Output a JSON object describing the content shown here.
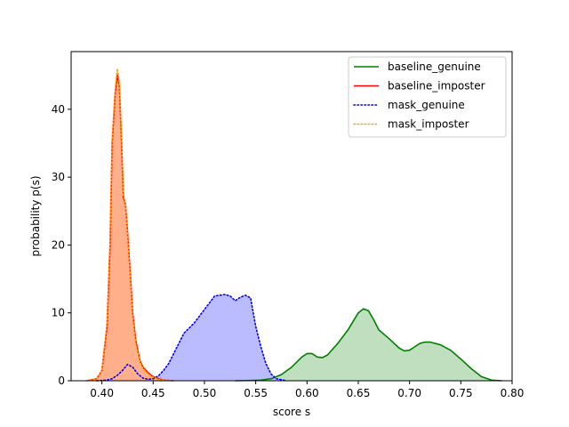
{
  "chart_data": {
    "type": "area",
    "title": "",
    "xlabel": "score s",
    "ylabel": "probability p(s)",
    "xlim": [
      0.37,
      0.8
    ],
    "ylim": [
      0,
      48.5
    ],
    "xticks": [
      0.4,
      0.45,
      0.5,
      0.55,
      0.6,
      0.65,
      0.7,
      0.75,
      0.8
    ],
    "xtick_labels": [
      "0.40",
      "0.45",
      "0.50",
      "0.55",
      "0.60",
      "0.65",
      "0.70",
      "0.75",
      "0.80"
    ],
    "yticks": [
      0,
      10,
      20,
      30,
      40
    ],
    "ytick_labels": [
      "0",
      "10",
      "20",
      "30",
      "40"
    ],
    "grid": false,
    "legend_position": "top-right",
    "series": [
      {
        "name": "baseline_genuine",
        "color": "#008000",
        "fill": "#bfdfbf",
        "linestyle": "solid",
        "points": [
          [
            0.53,
            0
          ],
          [
            0.545,
            0.05
          ],
          [
            0.555,
            0.1
          ],
          [
            0.565,
            0.3
          ],
          [
            0.575,
            0.9
          ],
          [
            0.585,
            2.0
          ],
          [
            0.595,
            3.5
          ],
          [
            0.6,
            4.0
          ],
          [
            0.605,
            4.0
          ],
          [
            0.61,
            3.5
          ],
          [
            0.615,
            3.4
          ],
          [
            0.62,
            3.8
          ],
          [
            0.63,
            5.5
          ],
          [
            0.64,
            7.5
          ],
          [
            0.65,
            10.0
          ],
          [
            0.655,
            10.6
          ],
          [
            0.66,
            10.3
          ],
          [
            0.665,
            9.0
          ],
          [
            0.67,
            7.5
          ],
          [
            0.68,
            6.2
          ],
          [
            0.69,
            4.8
          ],
          [
            0.695,
            4.4
          ],
          [
            0.7,
            4.5
          ],
          [
            0.705,
            5.0
          ],
          [
            0.71,
            5.5
          ],
          [
            0.715,
            5.7
          ],
          [
            0.72,
            5.7
          ],
          [
            0.73,
            5.3
          ],
          [
            0.74,
            4.5
          ],
          [
            0.75,
            3.2
          ],
          [
            0.76,
            1.8
          ],
          [
            0.77,
            0.6
          ],
          [
            0.78,
            0.1
          ],
          [
            0.79,
            0
          ]
        ]
      },
      {
        "name": "baseline_imposter",
        "color": "#ff0000",
        "fill": "#ffb08a",
        "linestyle": "solid",
        "points": [
          [
            0.385,
            0
          ],
          [
            0.395,
            0.3
          ],
          [
            0.4,
            1.5
          ],
          [
            0.405,
            8.0
          ],
          [
            0.408,
            20.0
          ],
          [
            0.41,
            35.0
          ],
          [
            0.413,
            42.5
          ],
          [
            0.415,
            45.0
          ],
          [
            0.417,
            43.5
          ],
          [
            0.419,
            36.0
          ],
          [
            0.421,
            27.0
          ],
          [
            0.423,
            26.0
          ],
          [
            0.425,
            22.0
          ],
          [
            0.428,
            15.0
          ],
          [
            0.43,
            10.0
          ],
          [
            0.433,
            6.0
          ],
          [
            0.437,
            3.0
          ],
          [
            0.44,
            2.0
          ],
          [
            0.445,
            1.2
          ],
          [
            0.45,
            0.6
          ],
          [
            0.455,
            0.3
          ],
          [
            0.46,
            0.1
          ],
          [
            0.47,
            0
          ]
        ]
      },
      {
        "name": "mask_genuine",
        "color": "#0000ff",
        "fill": "#bbbbff",
        "linestyle": "dotted",
        "points": [
          [
            0.395,
            0
          ],
          [
            0.405,
            0.1
          ],
          [
            0.41,
            0.3
          ],
          [
            0.415,
            0.8
          ],
          [
            0.42,
            1.5
          ],
          [
            0.425,
            2.4
          ],
          [
            0.43,
            2.0
          ],
          [
            0.435,
            1.0
          ],
          [
            0.44,
            0.4
          ],
          [
            0.445,
            0.2
          ],
          [
            0.45,
            0.3
          ],
          [
            0.455,
            0.7
          ],
          [
            0.46,
            1.5
          ],
          [
            0.465,
            2.5
          ],
          [
            0.47,
            4.0
          ],
          [
            0.475,
            5.5
          ],
          [
            0.48,
            7.0
          ],
          [
            0.49,
            8.5
          ],
          [
            0.5,
            10.5
          ],
          [
            0.51,
            12.5
          ],
          [
            0.515,
            12.6
          ],
          [
            0.52,
            12.7
          ],
          [
            0.525,
            12.5
          ],
          [
            0.53,
            11.8
          ],
          [
            0.535,
            12.3
          ],
          [
            0.54,
            12.6
          ],
          [
            0.545,
            12.2
          ],
          [
            0.55,
            8.0
          ],
          [
            0.555,
            5.0
          ],
          [
            0.56,
            2.5
          ],
          [
            0.565,
            1.0
          ],
          [
            0.57,
            0.3
          ],
          [
            0.58,
            0
          ]
        ]
      },
      {
        "name": "mask_imposter",
        "color": "#ffa500",
        "fill": "#ffb08a",
        "linestyle": "dotted",
        "points": [
          [
            0.385,
            0
          ],
          [
            0.395,
            0.3
          ],
          [
            0.4,
            1.5
          ],
          [
            0.405,
            8.5
          ],
          [
            0.408,
            21.0
          ],
          [
            0.41,
            35.5
          ],
          [
            0.413,
            43.0
          ],
          [
            0.415,
            46.0
          ],
          [
            0.417,
            44.0
          ],
          [
            0.419,
            36.5
          ],
          [
            0.421,
            27.5
          ],
          [
            0.423,
            26.0
          ],
          [
            0.425,
            21.5
          ],
          [
            0.428,
            14.5
          ],
          [
            0.43,
            9.5
          ],
          [
            0.433,
            5.5
          ],
          [
            0.437,
            2.8
          ],
          [
            0.44,
            1.8
          ],
          [
            0.445,
            1.0
          ],
          [
            0.45,
            0.5
          ],
          [
            0.455,
            0.2
          ],
          [
            0.46,
            0.1
          ],
          [
            0.47,
            0
          ]
        ]
      }
    ]
  }
}
